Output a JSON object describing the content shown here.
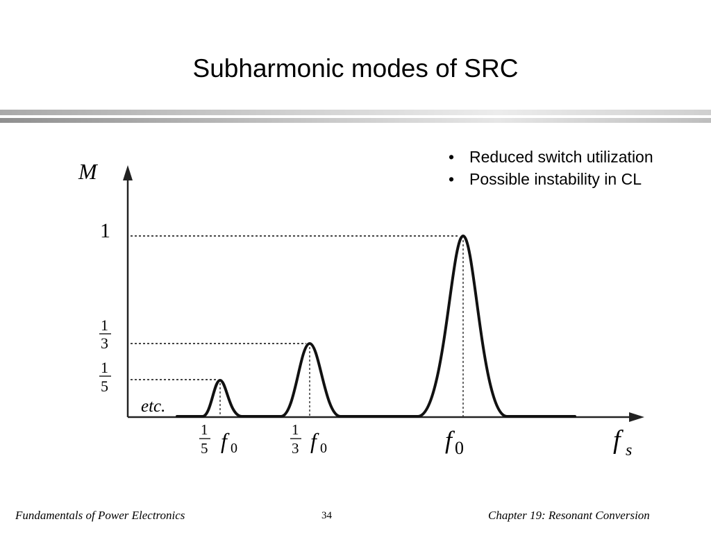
{
  "slide": {
    "title": "Subharmonic modes of SRC",
    "bullets": [
      "Reduced switch utilization",
      "Possible instability in CL"
    ],
    "bullet_glyph": "•"
  },
  "figure": {
    "y_axis_label": "M",
    "x_axis_label_main": "f",
    "x_axis_label_sub": "s",
    "y_tick_one": "1",
    "y_tick_third": {
      "num": "1",
      "den": "3"
    },
    "y_tick_fifth": {
      "num": "1",
      "den": "5"
    },
    "etc_label": "etc.",
    "x_tick_fifth": {
      "num": "1",
      "den": "5",
      "var": "f",
      "sub": "0"
    },
    "x_tick_third": {
      "num": "1",
      "den": "3",
      "var": "f",
      "sub": "0"
    },
    "x_tick_f0": {
      "var": "f",
      "sub": "0"
    },
    "peaks": [
      {
        "order": 5,
        "height": 0.2,
        "frequency_ratio": 0.2
      },
      {
        "order": 3,
        "height": 0.3333,
        "frequency_ratio": 0.3333
      },
      {
        "order": 1,
        "height": 1.0,
        "frequency_ratio": 1.0
      }
    ]
  },
  "footer": {
    "left": "Fundamentals of Power Electronics",
    "page": "34",
    "right": "Chapter 19:  Resonant Conversion"
  }
}
